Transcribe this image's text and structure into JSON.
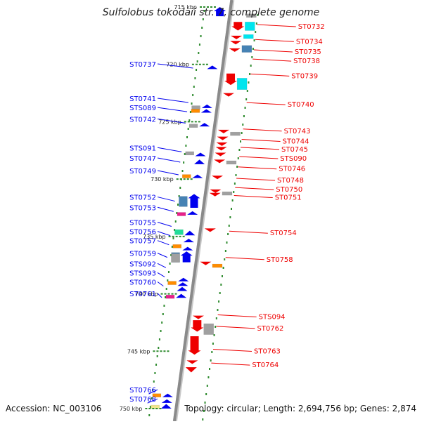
{
  "title": "Sulfolobus tokodaii str. 7, complete genome",
  "footer": {
    "accession": "Accession: NC_003106",
    "summary": "Topology: circular; Length: 2,694,756 bp; Genes: 2,874"
  },
  "colors": {
    "backbone": "#8a8a8a",
    "tick": "#2e8b2e",
    "forward": "#0000ee",
    "reverse": "#ee0000",
    "cyan": "#00e5ee",
    "steelblue": "#4682b4",
    "gray": "#a0a0a0",
    "orange": "#ff8c00",
    "magenta": "#e8208a",
    "aquamarine": "#22dd99",
    "khaki": "#f0e68c"
  },
  "kbp_markers": [
    {
      "label": "715 kbp",
      "kbp": 715
    },
    {
      "label": "720 kbp",
      "kbp": 720
    },
    {
      "label": "725 kbp",
      "kbp": 725
    },
    {
      "label": "730 kbp",
      "kbp": 730
    },
    {
      "label": "735 kbp",
      "kbp": 735
    },
    {
      "label": "740 kbp",
      "kbp": 740
    },
    {
      "label": "745 kbp",
      "kbp": 745
    },
    {
      "label": "750 kbp",
      "kbp": 750
    }
  ],
  "forward_labels": [
    {
      "label": "ST0737",
      "kbp": 720.2
    },
    {
      "label": "ST0741",
      "kbp": 723.2
    },
    {
      "label": "STS089",
      "kbp": 724.0
    },
    {
      "label": "ST0742",
      "kbp": 725.0
    },
    {
      "label": "STS091",
      "kbp": 727.5
    },
    {
      "label": "ST0747",
      "kbp": 728.4
    },
    {
      "label": "ST0749",
      "kbp": 729.5
    },
    {
      "label": "ST0752",
      "kbp": 731.8
    },
    {
      "label": "ST0753",
      "kbp": 732.7
    },
    {
      "label": "ST0755",
      "kbp": 734.0
    },
    {
      "label": "ST0756",
      "kbp": 734.8
    },
    {
      "label": "ST0757",
      "kbp": 735.6
    },
    {
      "label": "ST0759",
      "kbp": 736.7
    },
    {
      "label": "STS092",
      "kbp": 737.6
    },
    {
      "label": "STS093",
      "kbp": 738.4
    },
    {
      "label": "ST0760",
      "kbp": 739.2
    },
    {
      "label": "ST0761",
      "kbp": 740.2
    },
    {
      "label": "ST0766",
      "kbp": 748.6
    },
    {
      "label": "ST0768",
      "kbp": 749.4
    }
  ],
  "reverse_labels": [
    {
      "label": "ST0732",
      "kbp": 716.9
    },
    {
      "label": "ST0734",
      "kbp": 718.2
    },
    {
      "label": "ST0735",
      "kbp": 719.1
    },
    {
      "label": "ST0738",
      "kbp": 719.9
    },
    {
      "label": "ST0739",
      "kbp": 721.2
    },
    {
      "label": "ST0740",
      "kbp": 723.7
    },
    {
      "label": "ST0743",
      "kbp": 726.0
    },
    {
      "label": "ST0744",
      "kbp": 726.9
    },
    {
      "label": "ST0745",
      "kbp": 727.6
    },
    {
      "label": "STS090",
      "kbp": 728.4
    },
    {
      "label": "ST0746",
      "kbp": 729.3
    },
    {
      "label": "ST0748",
      "kbp": 730.3
    },
    {
      "label": "ST0750",
      "kbp": 731.1
    },
    {
      "label": "ST0751",
      "kbp": 731.8
    },
    {
      "label": "ST0754",
      "kbp": 734.9
    },
    {
      "label": "ST0758",
      "kbp": 737.2
    },
    {
      "label": "STS094",
      "kbp": 742.2
    },
    {
      "label": "ST0762",
      "kbp": 743.2
    },
    {
      "label": "ST0763",
      "kbp": 745.2
    },
    {
      "label": "ST0764",
      "kbp": 746.4
    }
  ],
  "features": [
    {
      "strand": "+",
      "type": "arrow",
      "kbp": 715.0,
      "len_kbp": 0.8,
      "color": "forward"
    },
    {
      "strand": "+",
      "type": "arrow",
      "kbp": 720.1,
      "len_kbp": 0.2,
      "color": "forward"
    },
    {
      "strand": "+",
      "type": "box",
      "kbp": 723.6,
      "len_kbp": 0.2,
      "color": "gray"
    },
    {
      "strand": "+",
      "type": "box",
      "kbp": 723.9,
      "len_kbp": 0.15,
      "color": "orange"
    },
    {
      "strand": "+",
      "type": "arrow",
      "kbp": 723.5,
      "len_kbp": 0.3,
      "color": "forward"
    },
    {
      "strand": "+",
      "type": "arrow",
      "kbp": 723.9,
      "len_kbp": 0.2,
      "color": "forward"
    },
    {
      "strand": "+",
      "type": "box",
      "kbp": 725.2,
      "len_kbp": 0.25,
      "color": "gray"
    },
    {
      "strand": "+",
      "type": "arrow",
      "kbp": 725.1,
      "len_kbp": 0.3,
      "color": "forward"
    },
    {
      "strand": "+",
      "type": "box",
      "kbp": 727.6,
      "len_kbp": 0.15,
      "color": "gray"
    },
    {
      "strand": "+",
      "type": "arrow",
      "kbp": 727.7,
      "len_kbp": 0.15,
      "color": "forward"
    },
    {
      "strand": "+",
      "type": "arrow",
      "kbp": 728.3,
      "len_kbp": 0.4,
      "color": "forward"
    },
    {
      "strand": "+",
      "type": "box",
      "kbp": 729.6,
      "len_kbp": 0.15,
      "color": "orange"
    },
    {
      "strand": "+",
      "type": "arrow",
      "kbp": 729.6,
      "len_kbp": 0.2,
      "color": "forward"
    },
    {
      "strand": "+",
      "type": "box",
      "kbp": 731.5,
      "len_kbp": 0.9,
      "color": "steelblue"
    },
    {
      "strand": "+",
      "type": "arrow",
      "kbp": 731.3,
      "len_kbp": 1.2,
      "color": "forward"
    },
    {
      "strand": "+",
      "type": "box",
      "kbp": 732.9,
      "len_kbp": 0.2,
      "color": "magenta"
    },
    {
      "strand": "+",
      "type": "arrow",
      "kbp": 732.8,
      "len_kbp": 0.2,
      "color": "forward"
    },
    {
      "strand": "+",
      "type": "box",
      "kbp": 734.4,
      "len_kbp": 0.45,
      "color": "aquamarine"
    },
    {
      "strand": "+",
      "type": "arrow",
      "kbp": 734.5,
      "len_kbp": 0.4,
      "color": "forward"
    },
    {
      "strand": "+",
      "type": "arrow",
      "kbp": 735.2,
      "len_kbp": 0.3,
      "color": "forward"
    },
    {
      "strand": "+",
      "type": "box",
      "kbp": 735.7,
      "len_kbp": 0.2,
      "color": "orange"
    },
    {
      "strand": "+",
      "type": "arrow",
      "kbp": 735.9,
      "len_kbp": 0.2,
      "color": "forward"
    },
    {
      "strand": "+",
      "type": "box",
      "kbp": 736.4,
      "len_kbp": 0.85,
      "color": "steelblue"
    },
    {
      "strand": "+",
      "type": "box",
      "kbp": 736.5,
      "len_kbp": 0.75,
      "color": "gray"
    },
    {
      "strand": "+",
      "type": "arrow",
      "kbp": 736.3,
      "len_kbp": 0.95,
      "color": "forward"
    },
    {
      "strand": "+",
      "type": "box",
      "kbp": 738.9,
      "len_kbp": 0.15,
      "color": "orange"
    },
    {
      "strand": "+",
      "type": "arrow",
      "kbp": 738.6,
      "len_kbp": 0.2,
      "color": "forward"
    },
    {
      "strand": "+",
      "type": "arrow",
      "kbp": 739.0,
      "len_kbp": 0.25,
      "color": "forward"
    },
    {
      "strand": "+",
      "type": "arrow",
      "kbp": 739.4,
      "len_kbp": 0.35,
      "color": "forward"
    },
    {
      "strand": "+",
      "type": "box",
      "kbp": 740.1,
      "len_kbp": 0.25,
      "color": "magenta"
    },
    {
      "strand": "+",
      "type": "arrow",
      "kbp": 740.0,
      "len_kbp": 0.35,
      "color": "forward"
    },
    {
      "strand": "+",
      "type": "box",
      "kbp": 748.7,
      "len_kbp": 0.15,
      "color": "orange"
    },
    {
      "strand": "+",
      "type": "arrow",
      "kbp": 748.7,
      "len_kbp": 0.2,
      "color": "forward"
    },
    {
      "strand": "+",
      "type": "arrow",
      "kbp": 749.2,
      "len_kbp": 0.3,
      "color": "forward"
    },
    {
      "strand": "+",
      "type": "box",
      "kbp": 749.7,
      "len_kbp": 0.3,
      "color": "khaki"
    },
    {
      "strand": "+",
      "type": "arrow",
      "kbp": 749.6,
      "len_kbp": 0.4,
      "color": "forward"
    },
    {
      "strand": "-",
      "type": "box",
      "kbp": 715.6,
      "len_kbp": 0.2,
      "color": "gray"
    },
    {
      "strand": "-",
      "type": "arrow",
      "kbp": 716.3,
      "len_kbp": 0.75,
      "color": "reverse"
    },
    {
      "strand": "-",
      "type": "box",
      "kbp": 716.3,
      "len_kbp": 0.75,
      "color": "cyan"
    },
    {
      "strand": "-",
      "type": "arrow",
      "kbp": 717.5,
      "len_kbp": 0.25,
      "color": "reverse"
    },
    {
      "strand": "-",
      "type": "box",
      "kbp": 717.4,
      "len_kbp": 0.35,
      "color": "cyan"
    },
    {
      "strand": "-",
      "type": "arrow",
      "kbp": 717.95,
      "len_kbp": 0.25,
      "color": "reverse"
    },
    {
      "strand": "-",
      "type": "box",
      "kbp": 718.35,
      "len_kbp": 0.6,
      "color": "steelblue"
    },
    {
      "strand": "-",
      "type": "arrow",
      "kbp": 718.6,
      "len_kbp": 0.2,
      "color": "reverse"
    },
    {
      "strand": "-",
      "type": "arrow",
      "kbp": 720.8,
      "len_kbp": 1.0,
      "color": "reverse"
    },
    {
      "strand": "-",
      "type": "box",
      "kbp": 721.2,
      "len_kbp": 1.0,
      "color": "cyan"
    },
    {
      "strand": "-",
      "type": "arrow",
      "kbp": 722.5,
      "len_kbp": 0.3,
      "color": "reverse"
    },
    {
      "strand": "-",
      "type": "arrow",
      "kbp": 725.7,
      "len_kbp": 0.1,
      "color": "reverse"
    },
    {
      "strand": "-",
      "type": "box",
      "kbp": 725.9,
      "len_kbp": 0.2,
      "color": "gray"
    },
    {
      "strand": "-",
      "type": "arrow",
      "kbp": 726.3,
      "len_kbp": 0.15,
      "color": "reverse"
    },
    {
      "strand": "-",
      "type": "arrow",
      "kbp": 726.8,
      "len_kbp": 0.1,
      "color": "reverse"
    },
    {
      "strand": "-",
      "type": "arrow",
      "kbp": 727.2,
      "len_kbp": 0.1,
      "color": "reverse"
    },
    {
      "strand": "-",
      "type": "arrow",
      "kbp": 727.7,
      "len_kbp": 0.1,
      "color": "reverse"
    },
    {
      "strand": "-",
      "type": "arrow",
      "kbp": 728.3,
      "len_kbp": 0.15,
      "color": "reverse"
    },
    {
      "strand": "-",
      "type": "box",
      "kbp": 728.4,
      "len_kbp": 0.25,
      "color": "gray"
    },
    {
      "strand": "-",
      "type": "arrow",
      "kbp": 729.7,
      "len_kbp": 0.15,
      "color": "reverse"
    },
    {
      "strand": "-",
      "type": "arrow",
      "kbp": 730.9,
      "len_kbp": 0.15,
      "color": "reverse"
    },
    {
      "strand": "-",
      "type": "arrow",
      "kbp": 731.2,
      "len_kbp": 0.15,
      "color": "reverse"
    },
    {
      "strand": "-",
      "type": "box",
      "kbp": 731.1,
      "len_kbp": 0.2,
      "color": "gray"
    },
    {
      "strand": "-",
      "type": "arrow",
      "kbp": 734.3,
      "len_kbp": 0.2,
      "color": "reverse"
    },
    {
      "strand": "-",
      "type": "arrow",
      "kbp": 737.2,
      "len_kbp": 0.15,
      "color": "reverse"
    },
    {
      "strand": "-",
      "type": "box",
      "kbp": 737.4,
      "len_kbp": 0.2,
      "color": "orange"
    },
    {
      "strand": "-",
      "type": "arrow",
      "kbp": 741.9,
      "len_kbp": 0.15,
      "color": "reverse"
    },
    {
      "strand": "-",
      "type": "arrow",
      "kbp": 742.3,
      "len_kbp": 1.0,
      "color": "reverse"
    },
    {
      "strand": "-",
      "type": "box",
      "kbp": 742.6,
      "len_kbp": 0.95,
      "color": "gray"
    },
    {
      "strand": "-",
      "type": "arrow",
      "kbp": 743.7,
      "len_kbp": 1.6,
      "color": "reverse"
    },
    {
      "strand": "-",
      "type": "arrow",
      "kbp": 745.8,
      "len_kbp": 0.3,
      "color": "reverse"
    },
    {
      "strand": "-",
      "type": "arrow",
      "kbp": 746.4,
      "len_kbp": 0.45,
      "color": "reverse"
    }
  ]
}
